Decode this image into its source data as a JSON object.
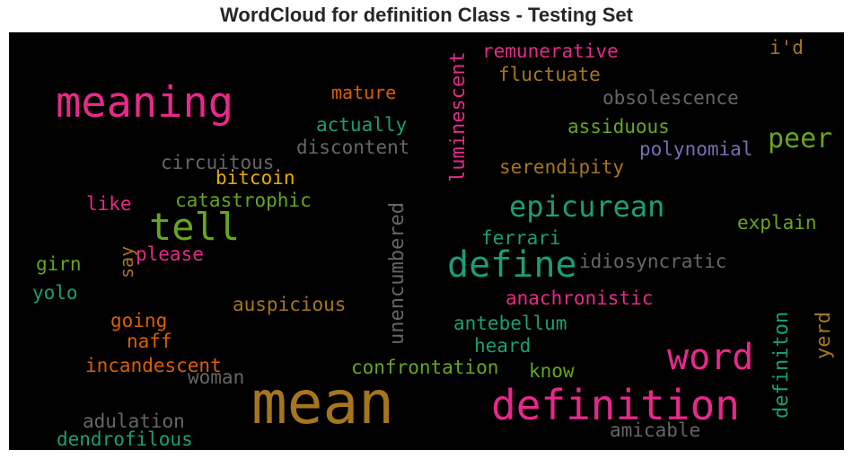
{
  "title": "WordCloud for definition Class - Testing Set",
  "colors": {
    "magenta": "#e7298a",
    "teal": "#1b9e77",
    "ochre": "#a6761d",
    "orange": "#d95f02",
    "green": "#66a61e",
    "gray": "#666666",
    "purple": "#7570b3",
    "gold": "#e6ab02"
  },
  "words": {
    "meaning": "meaning",
    "mean": "mean",
    "definition": "definition",
    "define": "define",
    "word": "word",
    "tell": "tell",
    "epicurean": "epicurean",
    "peer": "peer",
    "luminescent": "luminescent",
    "unencumbered": "unencumbered",
    "definiton": "definiton",
    "yerd": "yerd",
    "say": "say",
    "remunerative": "remunerative",
    "fluctuate": "fluctuate",
    "id": "i'd",
    "mature": "mature",
    "obsolescence": "obsolescence",
    "actually": "actually",
    "assiduous": "assiduous",
    "discontent": "discontent",
    "polynomial": "polynomial",
    "circuitous": "circuitous",
    "serendipity": "serendipity",
    "bitcoin": "bitcoin",
    "catastrophic": "catastrophic",
    "like": "like",
    "explain": "explain",
    "ferrari": "ferrari",
    "please": "please",
    "girn": "girn",
    "idiosyncratic": "idiosyncratic",
    "yolo": "yolo",
    "auspicious": "auspicious",
    "anachronistic": "anachronistic",
    "going": "going",
    "antebellum": "antebellum",
    "naff": "naff",
    "heard": "heard",
    "incandescent": "incandescent",
    "confrontation": "confrontation",
    "know": "know",
    "woman": "woman",
    "adulation": "adulation",
    "amicable": "amicable",
    "dendrofilous": "dendrofilous"
  }
}
